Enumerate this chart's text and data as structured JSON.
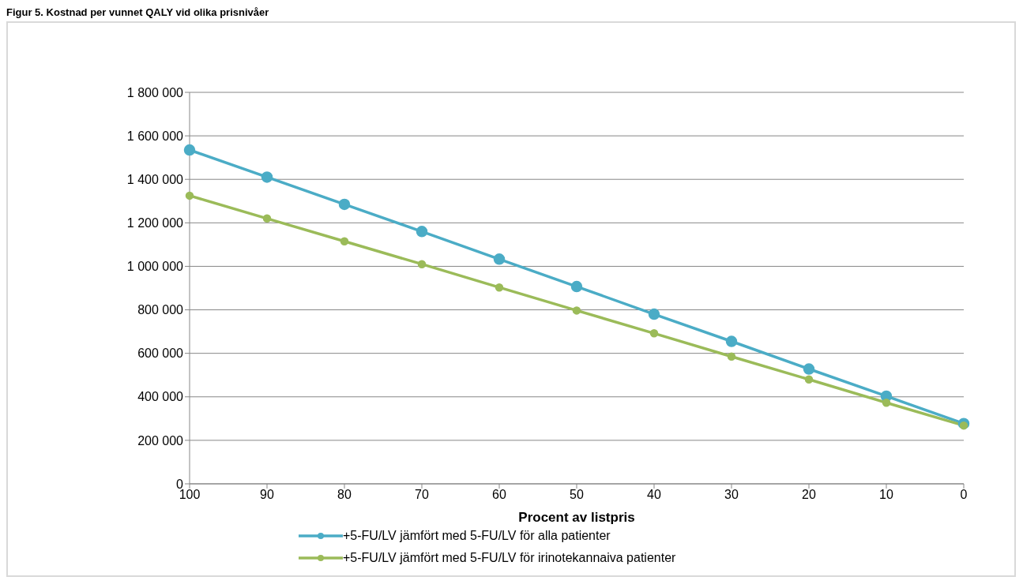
{
  "chart_data": {
    "type": "line",
    "title": "Figur 5. Kostnad per vunnet QALY vid olika prisnivåer",
    "xlabel": "Procent av listpris",
    "categories": [
      "100",
      "90",
      "80",
      "70",
      "60",
      "50",
      "40",
      "30",
      "20",
      "10",
      "0"
    ],
    "series": [
      {
        "name": "+5-FU/LV jämfört med 5-FU/LV för alla patienter",
        "color": "#4bacc6",
        "values": [
          1535000,
          1410000,
          1285000,
          1160000,
          1033000,
          907000,
          780000,
          655000,
          528000,
          403000,
          277000
        ]
      },
      {
        "name": "+5-FU/LV jämfört med 5-FU/LV för irinotekannaiva patienter",
        "color": "#9bbb59",
        "values": [
          1325000,
          1220000,
          1115000,
          1010000,
          903000,
          797000,
          692000,
          585000,
          480000,
          373000,
          268000
        ]
      }
    ],
    "ylim": [
      0,
      1800000
    ],
    "yticks": [
      0,
      200000,
      400000,
      600000,
      800000,
      1000000,
      1200000,
      1400000,
      1600000,
      1800000
    ],
    "grid": "y",
    "legend": "bottom",
    "marker": "circle",
    "line_style": "solid"
  }
}
